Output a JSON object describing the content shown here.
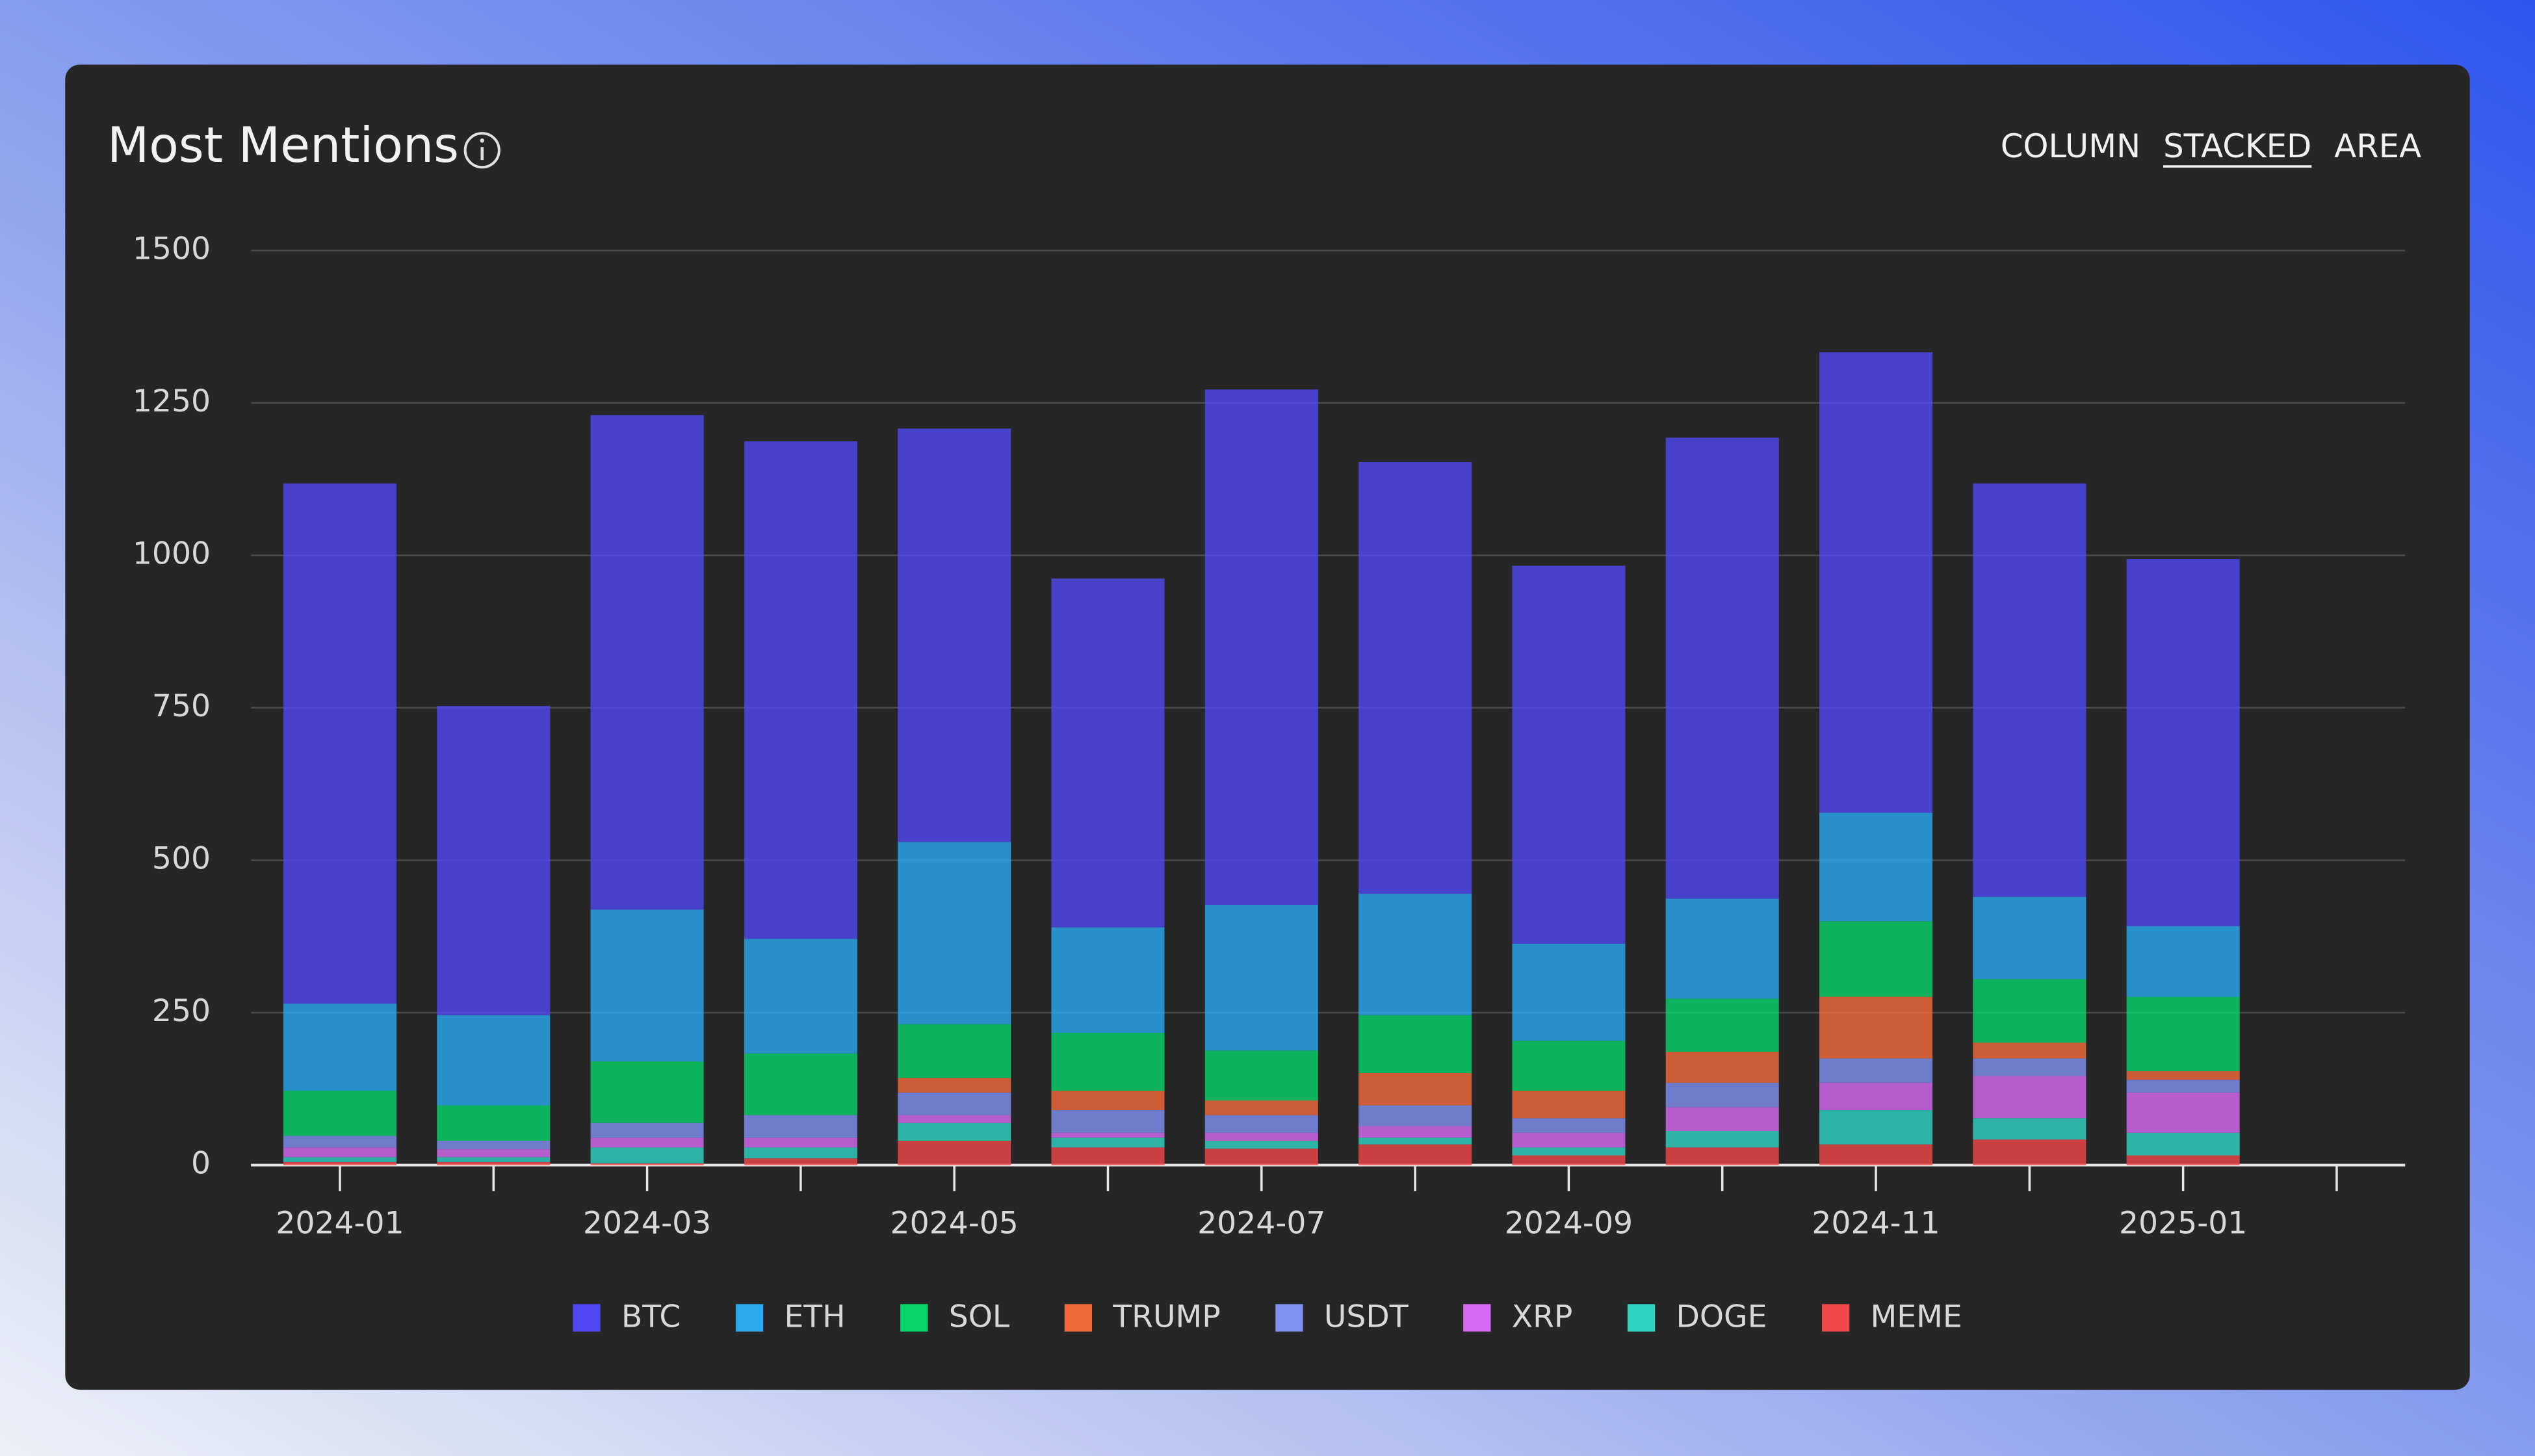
{
  "chart_data": {
    "type": "stacked-bar",
    "title": "Most Mentions",
    "controls": [
      "COLUMN",
      "STACKED",
      "AREA"
    ],
    "active_control": 1,
    "categories": [
      "2024-01",
      null,
      "2024-03",
      null,
      "2024-05",
      null,
      "2024-07",
      null,
      "2024-09",
      null,
      "2024-11",
      null,
      "2025-01",
      null
    ],
    "series": [
      {
        "name": "MEME",
        "color": "#f04848",
        "values": [
          5,
          5,
          3,
          11,
          40,
          29,
          27,
          34,
          16,
          29,
          34,
          42,
          16,
          null
        ]
      },
      {
        "name": "DOGE",
        "color": "#2ed3c2",
        "values": [
          8,
          8,
          26,
          18,
          29,
          16,
          13,
          11,
          13,
          27,
          56,
          35,
          37,
          null
        ]
      },
      {
        "name": "XRP",
        "color": "#d66af2",
        "values": [
          16,
          13,
          16,
          16,
          13,
          8,
          13,
          19,
          24,
          39,
          45,
          69,
          66,
          null
        ]
      },
      {
        "name": "USDT",
        "color": "#7f90f0",
        "values": [
          19,
          14,
          24,
          37,
          37,
          37,
          29,
          34,
          24,
          40,
          40,
          29,
          21,
          null
        ]
      },
      {
        "name": "TRUMP",
        "color": "#f26a3a",
        "values": [
          0,
          0,
          0,
          0,
          24,
          32,
          24,
          53,
          45,
          51,
          101,
          26,
          14,
          null
        ]
      },
      {
        "name": "SOL",
        "color": "#08d46a",
        "values": [
          74,
          58,
          101,
          101,
          88,
          95,
          82,
          95,
          82,
          87,
          124,
          104,
          122,
          null
        ]
      },
      {
        "name": "ETH",
        "color": "#2aa8f0",
        "values": [
          143,
          148,
          249,
          188,
          299,
          173,
          239,
          199,
          159,
          164,
          178,
          135,
          116,
          null
        ]
      },
      {
        "name": "BTC",
        "color": "#5048f2",
        "values": [
          853,
          507,
          811,
          816,
          678,
          572,
          845,
          708,
          620,
          756,
          755,
          678,
          602,
          null
        ]
      }
    ],
    "legend_order": [
      7,
      6,
      5,
      4,
      3,
      2,
      1,
      0
    ],
    "ylim": [
      0,
      1500
    ],
    "yticks": [
      0,
      250,
      500,
      750,
      1000,
      1250,
      1500
    ],
    "grid": true
  }
}
